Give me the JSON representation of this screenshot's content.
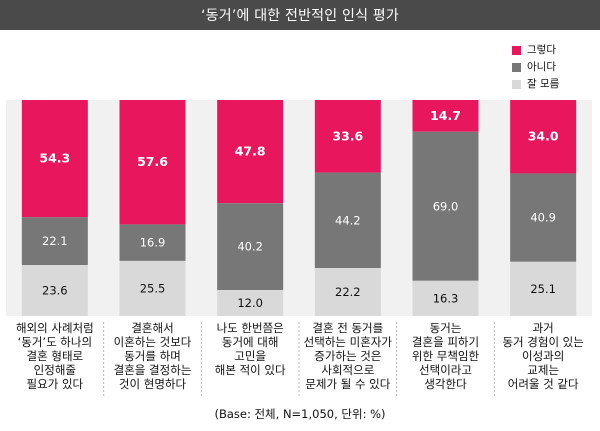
{
  "title": "‘동거’에 대한 전반적인 인식 평가",
  "legend": [
    {
      "label": "그렇다",
      "color": "#e8175d"
    },
    {
      "label": "아니다",
      "color": "#777777"
    },
    {
      "label": "잘 모름",
      "color": "#d9d9d9"
    }
  ],
  "note": "(Base: 전체, N=1,050, 단위: %)",
  "chart_data": {
    "type": "bar",
    "stacked": true,
    "normalized_100": true,
    "categories": [
      [
        "해외의 사례처럼",
        "‘동거’도 하나의",
        "결혼 형태로",
        "인정해줄",
        "필요가 있다"
      ],
      [
        "결혼해서",
        "이혼하는 것보다",
        "동거를 하며",
        "결혼을 결정하는",
        "것이 현명하다"
      ],
      [
        "나도 한번쯤은",
        "동거에 대해",
        "고민을",
        "해본 적이 있다"
      ],
      [
        "결혼 전 동거를",
        "선택하는 미혼자가",
        "증가하는 것은",
        "사회적으로",
        "문제가 될 수 있다"
      ],
      [
        "동거는",
        "결혼을 피하기",
        "위한 무책임한",
        "선택이라고",
        "생각한다"
      ],
      [
        "과거",
        "동거 경험이 있는",
        "이성과의",
        "교제는",
        "어려울 것 같다"
      ]
    ],
    "series": [
      {
        "name": "그렇다",
        "values": [
          54.3,
          57.6,
          47.8,
          33.6,
          14.7,
          34.0
        ],
        "labels": [
          "54.3",
          "57.6",
          "47.8",
          "33.6",
          "14.7",
          "34.0"
        ]
      },
      {
        "name": "아니다",
        "values": [
          22.1,
          16.9,
          40.2,
          44.2,
          69.0,
          40.9
        ],
        "labels": [
          "22.1",
          "16.9",
          "40.2",
          "44.2",
          "69.0",
          "40.9"
        ]
      },
      {
        "name": "잘 모름",
        "values": [
          23.6,
          25.5,
          12.0,
          22.2,
          16.3,
          25.1
        ],
        "labels": [
          "23.6",
          "25.5",
          "12.0",
          "22.2",
          "16.3",
          "25.1"
        ]
      }
    ],
    "ylim": [
      0,
      100
    ],
    "grid": false,
    "legend_position": "top-right"
  }
}
